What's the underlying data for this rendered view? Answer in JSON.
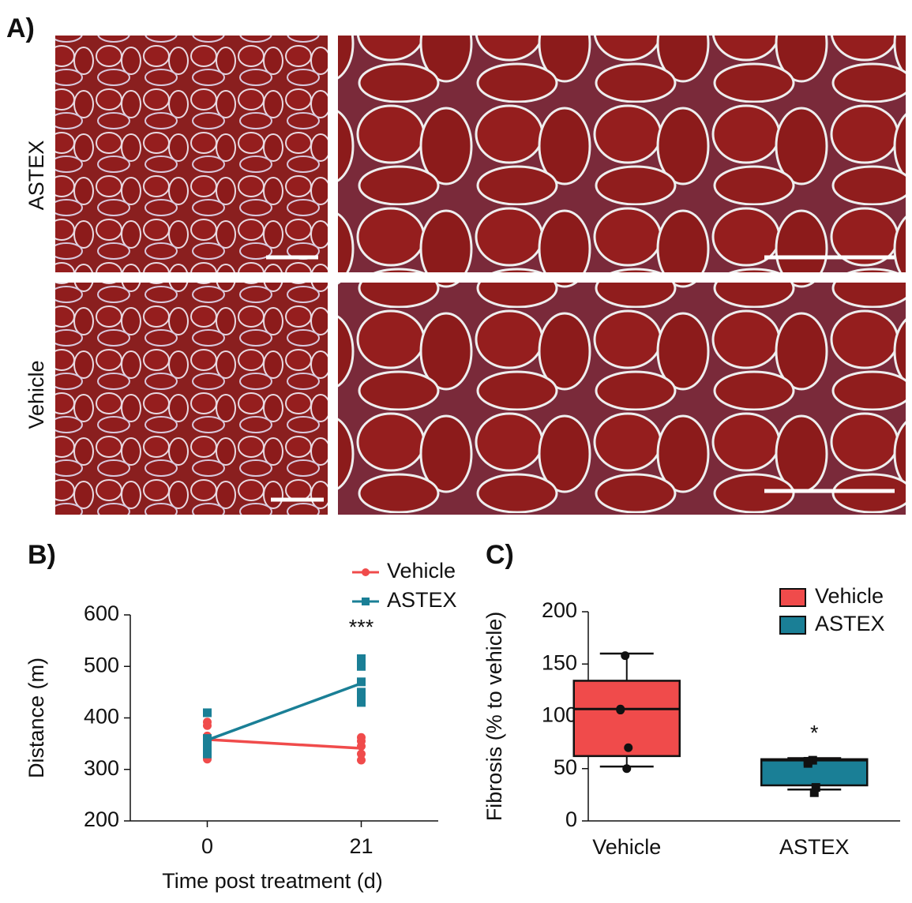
{
  "figure": {
    "panel_a": {
      "label": "A)",
      "rows": [
        "ASTEX",
        "Vehicle"
      ]
    }
  },
  "chart_data": [
    {
      "type": "line",
      "panel_label": "B)",
      "x_label": "Time post treatment (d)",
      "y_label": "Distance (m)",
      "x": [
        0,
        21
      ],
      "xlim": [
        -10.5,
        31.5
      ],
      "xticks": [
        0,
        21
      ],
      "ylim": [
        200,
        600
      ],
      "yticks": [
        200,
        300,
        400,
        500,
        600
      ],
      "series": [
        {
          "name": "Vehicle",
          "color": "#f04b4b",
          "marker": "circle",
          "values": [
            358,
            341
          ],
          "points": {
            "x": [
              0,
              0,
              0,
              0,
              0,
              0,
              0,
              21,
              21,
              21,
              21,
              21
            ],
            "y": [
              320,
              330,
              345,
              355,
              365,
              385,
              392,
              318,
              330,
              345,
              355,
              362
            ]
          }
        },
        {
          "name": "ASTEX",
          "color": "#1a7f96",
          "marker": "square",
          "values": [
            357,
            467
          ],
          "points": {
            "x": [
              0,
              0,
              0,
              0,
              0,
              0,
              21,
              21,
              21,
              21,
              21,
              21
            ],
            "y": [
              410,
              360,
              350,
              345,
              340,
              330,
              515,
              500,
              470,
              450,
              440,
              430
            ]
          }
        }
      ],
      "annotations": [
        {
          "text": "***",
          "x": 21
        }
      ]
    },
    {
      "type": "box",
      "panel_label": "C)",
      "y_label": "Fibrosis (% to vehicle)",
      "categories": [
        "Vehicle",
        "ASTEX"
      ],
      "ylim": [
        0,
        200
      ],
      "yticks": [
        0,
        50,
        100,
        150,
        200
      ],
      "series": [
        {
          "name": "Vehicle",
          "color": "#f04b4b",
          "whisker_low": 52,
          "q1": 62,
          "median": 107,
          "q3": 134,
          "whisker_high": 160,
          "points": [
            158,
            106,
            107,
            70,
            50
          ]
        },
        {
          "name": "ASTEX",
          "color": "#1a7f96",
          "whisker_low": 30,
          "q1": 34,
          "median": 58,
          "q3": 59,
          "whisker_high": 60,
          "points": [
            58,
            55,
            57,
            32,
            27
          ]
        }
      ],
      "annotations": [
        {
          "text": "*",
          "category": 1
        }
      ]
    }
  ]
}
